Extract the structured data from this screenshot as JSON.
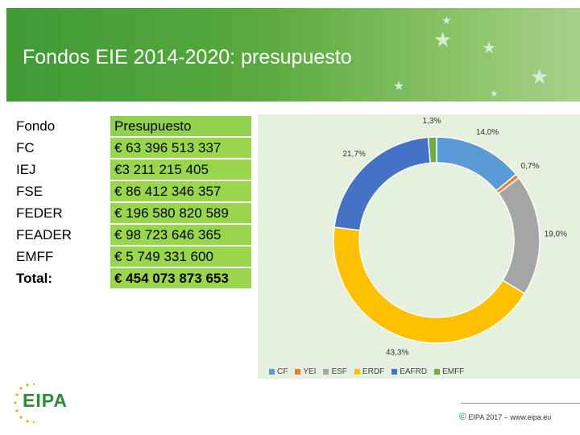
{
  "slide": {
    "title": "Fondos EIE 2014-2020: presupuesto"
  },
  "table": {
    "header": {
      "fondo": "Fondo",
      "presupuesto": "Presupuesto"
    },
    "rows": [
      {
        "fondo": "FC",
        "presupuesto": "€ 63 396 513 337"
      },
      {
        "fondo": "IEJ",
        "presupuesto": "€3 211 215 405"
      },
      {
        "fondo": "FSE",
        "presupuesto": "€ 86 412 346 357"
      },
      {
        "fondo": "FEDER",
        "presupuesto": "€ 196 580 820 589"
      },
      {
        "fondo": "FEADER",
        "presupuesto": "€ 98 723 646 365"
      },
      {
        "fondo": "EMFF",
        "presupuesto": "€ 5 749 331 600"
      }
    ],
    "total": {
      "fondo": "Total:",
      "presupuesto": "€ 454 073 873 653"
    }
  },
  "chart_data": {
    "type": "pie",
    "variant": "donut",
    "categories": [
      "CF",
      "YEI",
      "ESF",
      "ERDF",
      "EAFRD",
      "EMFF"
    ],
    "values": [
      14.0,
      0.7,
      19.0,
      43.3,
      21.7,
      1.3
    ],
    "data_labels": [
      "14,0%",
      "0,7%",
      "19,0%",
      "43,3%",
      "21,7%",
      "1,3%"
    ],
    "colors": [
      "#5b9bd5",
      "#ed7d31",
      "#a5a5a5",
      "#ffc000",
      "#4472c4",
      "#70ad47"
    ],
    "legend_position": "bottom",
    "background": "#e5f0df"
  },
  "logo": {
    "text": "EIPA"
  },
  "footer": {
    "copyright": "©",
    "text": "EIPA 2017 – www.eipa.eu"
  }
}
